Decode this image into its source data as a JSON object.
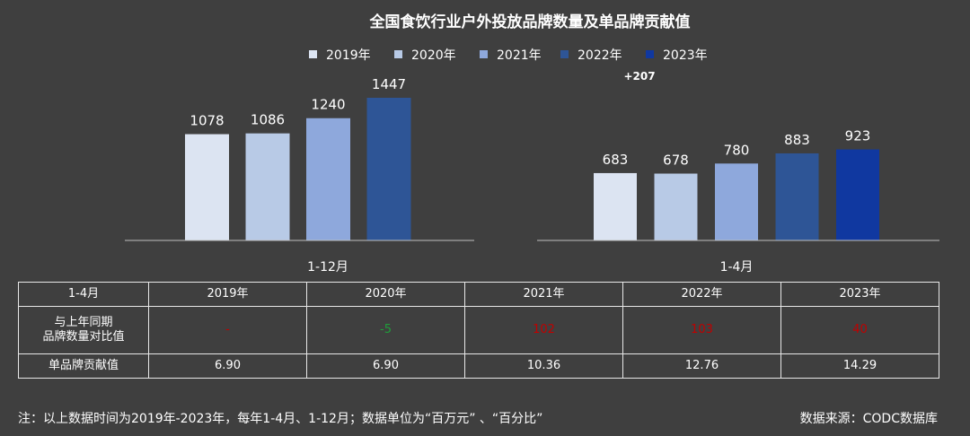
{
  "chart_data": {
    "type": "bar",
    "title": "全国食饮行业户外投放品牌数量及单品牌贡献值",
    "series": [
      {
        "name": "2019年",
        "color": "#dce4f2"
      },
      {
        "name": "2020年",
        "color": "#b8cae6"
      },
      {
        "name": "2021年",
        "color": "#8ea8dc"
      },
      {
        "name": "2022年",
        "color": "#2e5596"
      },
      {
        "name": "2023年",
        "color": "#1038a0"
      }
    ],
    "groups": [
      {
        "label": "1-12月",
        "values": [
          1078,
          1086,
          1240,
          1447
        ],
        "value_labels": [
          "1078",
          "1086",
          "1240",
          "1447"
        ]
      },
      {
        "label": "1-4月",
        "values": [
          683,
          678,
          780,
          883,
          923
        ],
        "value_labels": [
          "683",
          "678",
          "780",
          "883",
          "923"
        ]
      }
    ],
    "annotation": "+207",
    "legend_position": "top-center"
  },
  "table": {
    "header": [
      "1-4月",
      "2019年",
      "2020年",
      "2021年",
      "2022年",
      "2023年"
    ],
    "rows": [
      {
        "label_line1": "与上年同期",
        "label_line2": "品牌数量对比值",
        "cells": [
          {
            "text": "-",
            "color": "red"
          },
          {
            "text": "-5",
            "color": "green"
          },
          {
            "text": "102",
            "color": "red"
          },
          {
            "text": "103",
            "color": "red"
          },
          {
            "text": "40",
            "color": "red"
          }
        ]
      },
      {
        "label": "单品牌贡献值",
        "cells": [
          {
            "text": "6.90"
          },
          {
            "text": "6.90"
          },
          {
            "text": "10.36"
          },
          {
            "text": "12.76"
          },
          {
            "text": "14.29"
          }
        ]
      }
    ]
  },
  "footnote": "注：以上数据时间为2019年-2023年，每年1-4月、1-12月；数据单位为“百万元” 、“百分比”",
  "source": "数据来源：CODC数据库"
}
